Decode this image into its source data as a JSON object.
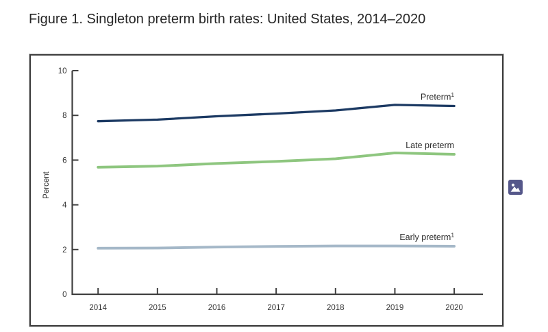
{
  "chart_data": {
    "type": "line",
    "title": "Figure 1. Singleton preterm birth rates: United States, 2014–2020",
    "xlabel": "",
    "ylabel": "Percent",
    "x": [
      2014,
      2015,
      2016,
      2017,
      2018,
      2019,
      2020
    ],
    "ylim": [
      0,
      10
    ],
    "ytick_interval": 2,
    "grid": false,
    "legend_position": "inline-labels-at-line-ends",
    "axis_color": "#404040",
    "tick_label_color": "#333333",
    "series_label_color": "#2b2b2b",
    "series": [
      {
        "name": "Preterm",
        "name_superscript": "1",
        "color": "#1c3a63",
        "line_width": 3.3,
        "values": [
          7.74,
          7.81,
          7.96,
          8.08,
          8.22,
          8.47,
          8.42
        ]
      },
      {
        "name": "Late preterm",
        "name_superscript": "",
        "color": "#8ec67f",
        "line_width": 3.9,
        "values": [
          5.68,
          5.73,
          5.85,
          5.94,
          6.06,
          6.32,
          6.26
        ]
      },
      {
        "name": "Early preterm",
        "name_superscript": "1",
        "color": "#a5b8c8",
        "line_width": 3.9,
        "values": [
          2.06,
          2.07,
          2.11,
          2.14,
          2.16,
          2.16,
          2.15
        ]
      }
    ]
  },
  "icons": {
    "image_placeholder": {
      "name": "image-icon",
      "color": "#55578a",
      "glyph_color": "#ffffff"
    }
  }
}
